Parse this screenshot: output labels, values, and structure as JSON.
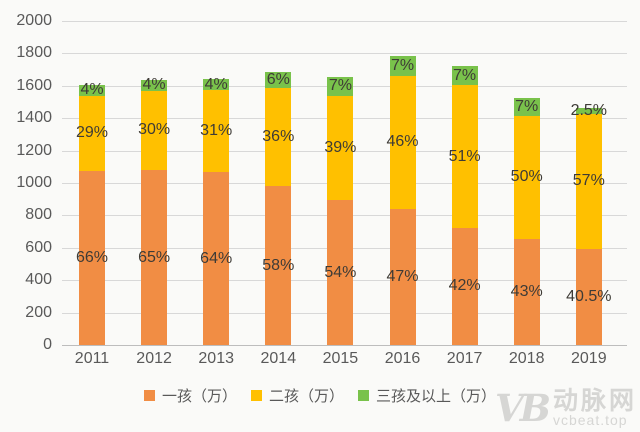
{
  "chart_data": {
    "type": "bar",
    "stacked": true,
    "title": "",
    "xlabel": "",
    "ylabel": "",
    "ylim": [
      0,
      2000
    ],
    "ytick_step": 200,
    "yticks": [
      "0",
      "200",
      "400",
      "600",
      "800",
      "1000",
      "1200",
      "1400",
      "1600",
      "1800",
      "2000"
    ],
    "grid": true,
    "legend_position": "bottom",
    "categories": [
      "2011",
      "2012",
      "2013",
      "2014",
      "2015",
      "2016",
      "2017",
      "2018",
      "2019"
    ],
    "totals_wan": [
      1604,
      1635,
      1640,
      1687,
      1655,
      1786,
      1723,
      1523,
      1465
    ],
    "series": [
      {
        "name": "一孩（万）",
        "color": "#F18D44",
        "percents": [
          66,
          65,
          64,
          58,
          54,
          47,
          42,
          43,
          40.5
        ],
        "labels": [
          "66%",
          "65%",
          "64%",
          "58%",
          "54%",
          "47%",
          "42%",
          "43%",
          "40.5%"
        ]
      },
      {
        "name": "二孩（万）",
        "color": "#FFC000",
        "percents": [
          29,
          30,
          31,
          36,
          39,
          46,
          51,
          50,
          57
        ],
        "labels": [
          "29%",
          "30%",
          "31%",
          "36%",
          "39%",
          "46%",
          "51%",
          "50%",
          "57%"
        ]
      },
      {
        "name": "三孩及以上（万）",
        "color": "#79C24B",
        "percents": [
          4,
          4,
          4,
          6,
          7,
          7,
          7,
          7,
          2.5
        ],
        "labels": [
          "4%",
          "4%",
          "4%",
          "6%",
          "7%",
          "7%",
          "7%",
          "7%",
          "2.5%"
        ]
      }
    ]
  },
  "watermark": {
    "logo": "VB",
    "brand": "动脉网",
    "site": "vcbeat.top"
  }
}
